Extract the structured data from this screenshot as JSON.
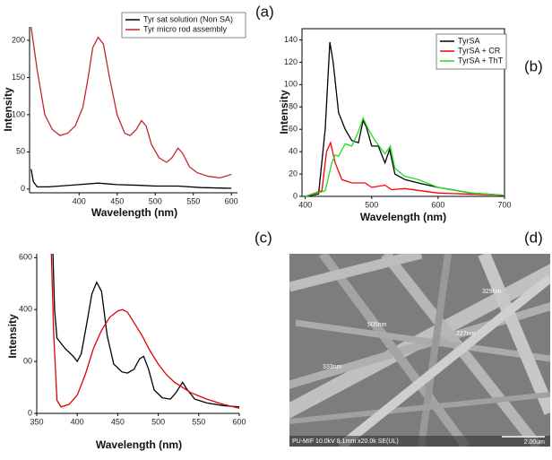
{
  "chart_data": [
    {
      "type": "line",
      "panel_label": "(a)",
      "x_label": "Wavelength (nm)",
      "y_label": "Intensity",
      "xlim": [
        335,
        608
      ],
      "ylim": [
        -5,
        218
      ],
      "xticks": [
        400,
        450,
        500,
        550,
        600
      ],
      "yticks": [
        0,
        50,
        100,
        150,
        200
      ],
      "frame": false,
      "series": [
        {
          "name": "Tyr sat solution (Non SA)",
          "color": "#000000",
          "x": [
            337,
            340,
            345,
            360,
            400,
            425,
            450,
            480,
            500,
            530,
            560,
            600
          ],
          "values": [
            27,
            10,
            3,
            3,
            6,
            8,
            6,
            5,
            4,
            4,
            2,
            1
          ]
        },
        {
          "name": "Tyr micro rod assembly",
          "color": "#c0272d",
          "x": [
            337,
            345,
            355,
            365,
            375,
            385,
            395,
            405,
            412,
            418,
            425,
            432,
            440,
            450,
            460,
            467,
            475,
            482,
            488,
            495,
            505,
            515,
            522,
            530,
            536,
            545,
            555,
            570,
            585,
            595,
            600
          ],
          "values": [
            218,
            160,
            100,
            80,
            72,
            75,
            85,
            110,
            150,
            190,
            204,
            195,
            150,
            100,
            75,
            72,
            80,
            92,
            85,
            60,
            42,
            36,
            42,
            55,
            48,
            30,
            22,
            17,
            15,
            18,
            20
          ]
        }
      ]
    },
    {
      "type": "line",
      "panel_label": "(b)",
      "x_label": "Wavelength (nm)",
      "y_label": "Intensity",
      "xlim": [
        395,
        700
      ],
      "ylim": [
        0,
        150
      ],
      "xticks": [
        400,
        500,
        600,
        700
      ],
      "yticks": [
        0,
        20,
        40,
        60,
        80,
        100,
        120,
        140
      ],
      "frame": true,
      "series": [
        {
          "name": "TyrSA",
          "color": "#000000",
          "x": [
            400,
            420,
            430,
            437,
            442,
            450,
            460,
            470,
            480,
            487,
            492,
            500,
            510,
            520,
            527,
            535,
            550,
            570,
            600,
            650,
            700
          ],
          "values": [
            0,
            2,
            60,
            138,
            120,
            75,
            60,
            50,
            48,
            68,
            62,
            45,
            45,
            30,
            42,
            20,
            15,
            12,
            8,
            3,
            1
          ]
        },
        {
          "name": "TyrSA + CR",
          "color": "#ff0000",
          "x": [
            400,
            425,
            432,
            438,
            445,
            455,
            470,
            490,
            500,
            520,
            530,
            550,
            600,
            700
          ],
          "values": [
            0,
            5,
            40,
            48,
            30,
            15,
            12,
            12,
            8,
            10,
            6,
            7,
            3,
            1
          ]
        },
        {
          "name": "TyrSA + ThT",
          "color": "#22dd22",
          "x": [
            400,
            430,
            440,
            445,
            450,
            460,
            470,
            480,
            487,
            495,
            505,
            515,
            520,
            528,
            535,
            550,
            570,
            600,
            650,
            700
          ],
          "values": [
            0,
            5,
            30,
            37,
            36,
            47,
            45,
            58,
            70,
            60,
            50,
            42,
            38,
            45,
            25,
            18,
            15,
            8,
            3,
            1
          ]
        }
      ]
    },
    {
      "type": "line",
      "panel_label": "(c)",
      "x_label": "Wavelength (nm)",
      "y_label": "Intensity",
      "xlim": [
        350,
        600
      ],
      "ylim": [
        0,
        615
      ],
      "xticks": [
        350,
        400,
        450,
        500,
        550,
        600
      ],
      "yticks": [
        0,
        {
          "value": 200,
          "label": "00"
        },
        400,
        600
      ],
      "frame": false,
      "series": [
        {
          "color": "#000000",
          "x": [
            370,
            372,
            375,
            385,
            395,
            400,
            405,
            412,
            418,
            424,
            430,
            437,
            445,
            455,
            462,
            470,
            477,
            482,
            488,
            495,
            505,
            515,
            522,
            530,
            535,
            545,
            560,
            580,
            600
          ],
          "values": [
            615,
            400,
            290,
            250,
            220,
            200,
            230,
            350,
            460,
            505,
            470,
            300,
            190,
            160,
            155,
            170,
            210,
            220,
            170,
            90,
            60,
            55,
            80,
            120,
            95,
            55,
            40,
            30,
            25
          ]
        },
        {
          "color": "#e00000",
          "x": [
            368,
            371,
            375,
            380,
            390,
            400,
            410,
            420,
            430,
            440,
            450,
            456,
            462,
            470,
            480,
            490,
            500,
            510,
            520,
            540,
            560,
            580,
            600
          ],
          "values": [
            615,
            300,
            50,
            25,
            35,
            70,
            150,
            250,
            320,
            370,
            395,
            400,
            390,
            350,
            300,
            240,
            190,
            150,
            120,
            80,
            55,
            35,
            20
          ]
        }
      ]
    }
  ],
  "image": {
    "panel_label": "(d)",
    "annotations": [
      "329nm",
      "505nm",
      "227nm",
      "333nm"
    ],
    "info": "PU-MIF 10.0kV 8.1mm x20.0k SE(UL)",
    "scale": "2.00um"
  }
}
